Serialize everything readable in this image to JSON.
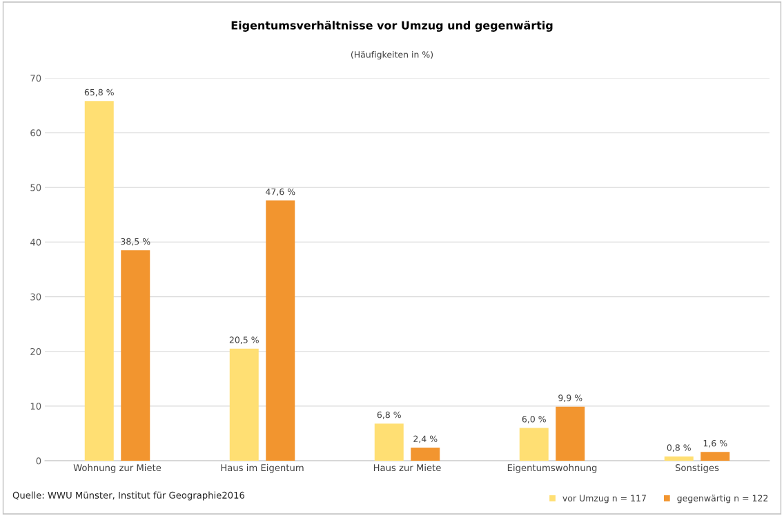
{
  "chart_data": {
    "type": "bar",
    "title": "Eigentumsverhältnisse vor Umzug und gegenwärtig",
    "subtitle": "(Häufigkeiten in %)",
    "categories": [
      "Wohnung zur Miete",
      "Haus im Eigentum",
      "Haus zur Miete",
      "Eigentumswohnung",
      "Sonstiges"
    ],
    "series": [
      {
        "name": "vor Umzug n = 117",
        "color": "#ffdf73",
        "values": [
          65.8,
          20.5,
          6.8,
          6.0,
          0.8
        ],
        "value_labels": [
          "65,8 %",
          "20,5 %",
          "6,8 %",
          "6,0 %",
          "0,8 %"
        ]
      },
      {
        "name": "gegenwärtig n = 122",
        "color": "#f2952f",
        "values": [
          38.5,
          47.6,
          2.4,
          9.9,
          1.6
        ],
        "value_labels": [
          "38,5 %",
          "47,6 %",
          "2,4 %",
          "9,9 %",
          "1,6 %"
        ]
      }
    ],
    "ylim": [
      0,
      70
    ],
    "yticks": [
      0,
      10,
      20,
      30,
      40,
      50,
      60,
      70
    ],
    "grid": "y",
    "legend": "bottom right",
    "annotations": [
      "Quelle: WWU Münster, Institut für Geographie2016"
    ]
  }
}
